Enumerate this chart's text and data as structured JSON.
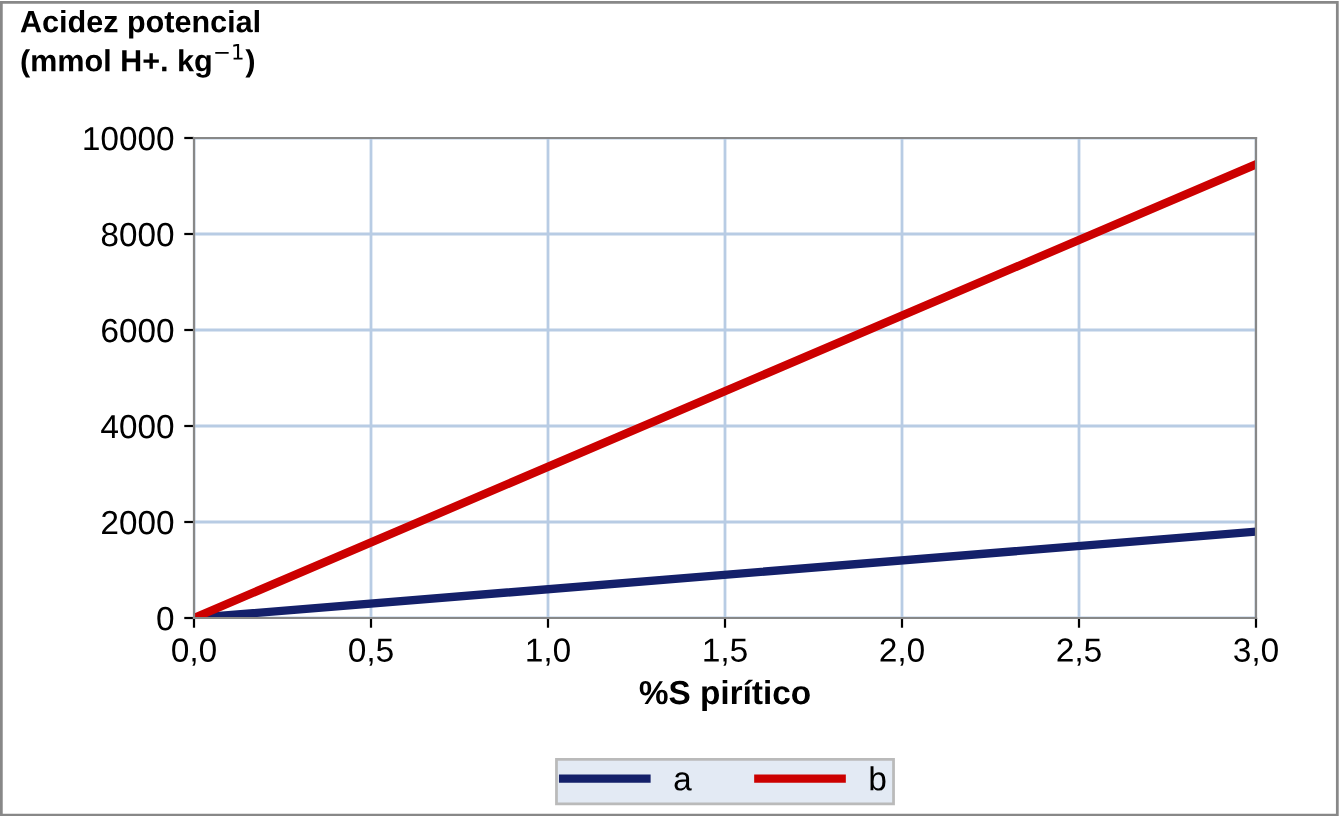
{
  "chart_data": {
    "type": "line",
    "ylabel": "Acidez potencial\n(mmol H+. kg$^{−1}$)",
    "xlabel": "%S pirítico",
    "x": [
      0,
      3
    ],
    "series": [
      {
        "name": "a",
        "color": "#14206a",
        "values": [
          0,
          1800
        ]
      },
      {
        "name": "b",
        "color": "#cc0000",
        "values": [
          0,
          9450
        ]
      }
    ],
    "xlim": [
      0,
      3
    ],
    "ylim": [
      0,
      10000
    ],
    "xticks": [
      {
        "value": 0,
        "label": "0,0"
      },
      {
        "value": 0.5,
        "label": "0,5"
      },
      {
        "value": 1,
        "label": "1,0"
      },
      {
        "value": 1.5,
        "label": "1,5"
      },
      {
        "value": 2,
        "label": "2,0"
      },
      {
        "value": 2.5,
        "label": "2,5"
      },
      {
        "value": 3,
        "label": "3,0"
      }
    ],
    "yticks": [
      0,
      2000,
      4000,
      6000,
      8000,
      10000
    ],
    "grid": true,
    "legend": "bottom",
    "marker": "none",
    "line_style": "solid"
  }
}
